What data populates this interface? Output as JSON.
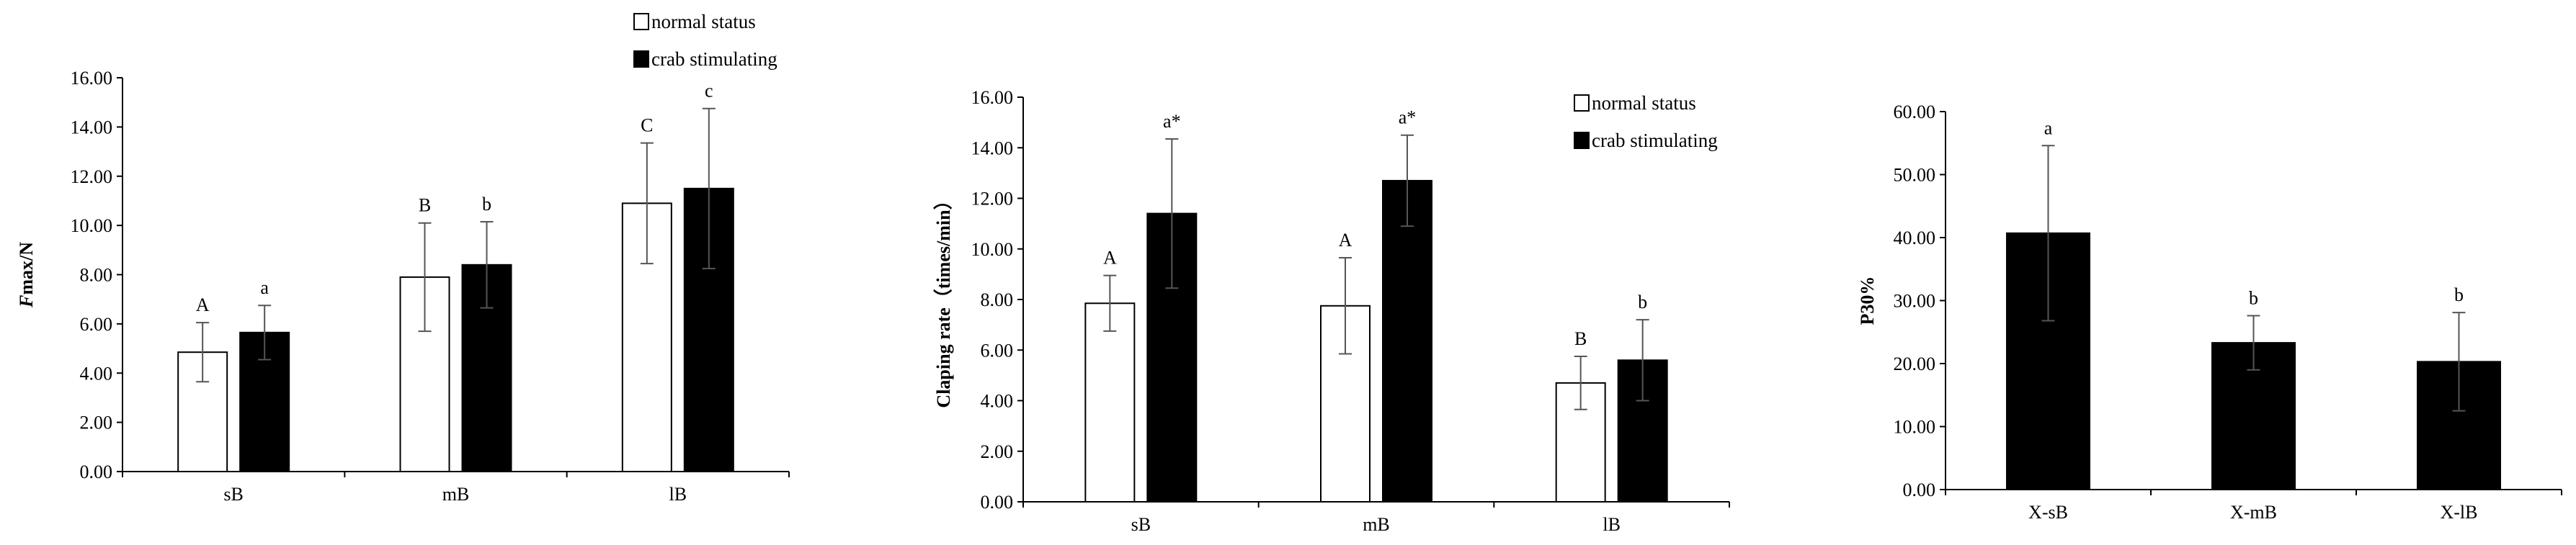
{
  "chart_data": [
    {
      "type": "bar",
      "categories": [
        "sB",
        "mB",
        "lB"
      ],
      "series": [
        {
          "name": "normal status",
          "values": [
            4.85,
            7.9,
            10.9
          ],
          "errors": [
            1.2,
            2.2,
            2.45
          ],
          "labels": [
            "A",
            "B",
            "C"
          ],
          "fill": "#ffffff"
        },
        {
          "name": "crab stimulating",
          "values": [
            5.65,
            8.4,
            11.5
          ],
          "errors": [
            1.1,
            1.75,
            3.25
          ],
          "labels": [
            "a",
            "b",
            "c"
          ],
          "fill": "#000000"
        }
      ],
      "ylabel_italic": "F",
      "ylabel_rest": "max/N",
      "ylim": [
        0,
        16
      ],
      "ytick_step": 2,
      "decimals": 2,
      "grid": false,
      "legend": "top-right"
    },
    {
      "type": "bar",
      "categories": [
        "sB",
        "mB",
        "lB"
      ],
      "series": [
        {
          "name": "normal status",
          "values": [
            7.85,
            7.75,
            4.7
          ],
          "errors": [
            1.1,
            1.9,
            1.05
          ],
          "labels": [
            "A",
            "A",
            "B"
          ],
          "fill": "#ffffff"
        },
        {
          "name": "crab stimulating",
          "values": [
            11.4,
            12.7,
            5.6
          ],
          "errors": [
            2.95,
            1.8,
            1.6
          ],
          "labels": [
            "a*",
            "a*",
            "b"
          ],
          "fill": "#000000"
        }
      ],
      "ylabel_italic": "",
      "ylabel_rest": "Claping rate（times/min）",
      "ylim": [
        0,
        16
      ],
      "ytick_step": 2,
      "decimals": 2,
      "grid": false,
      "legend": "top-right"
    },
    {
      "type": "bar",
      "categories": [
        "X-sB",
        "X-mB",
        "X-lB"
      ],
      "series": [
        {
          "name": "",
          "values": [
            40.7,
            23.3,
            20.3
          ],
          "errors": [
            13.9,
            4.3,
            7.8
          ],
          "labels": [
            "a",
            "b",
            "b"
          ],
          "fill": "#000000"
        }
      ],
      "ylabel_italic": "",
      "ylabel_rest": "P30%",
      "ylim": [
        0,
        60
      ],
      "ytick_step": 10,
      "decimals": 2,
      "grid": false,
      "legend": "none"
    }
  ],
  "colors": {
    "axis": "#000000",
    "error_bar": "#555555",
    "bar_outline": "#000000"
  }
}
